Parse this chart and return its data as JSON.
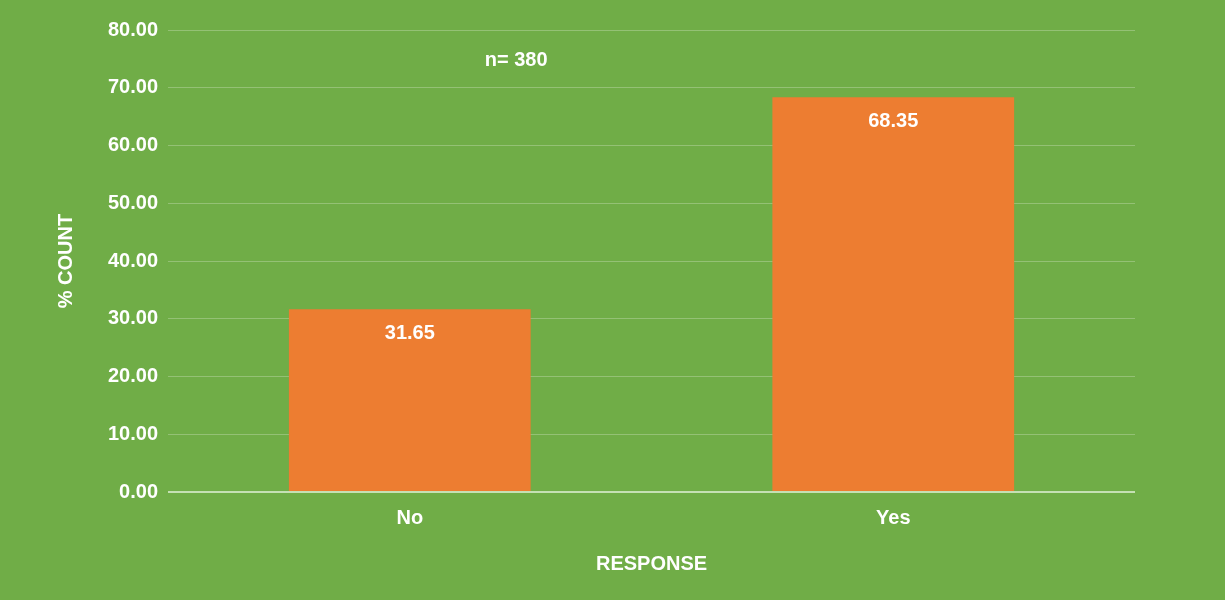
{
  "chart_data": {
    "type": "bar",
    "xlabel": "RESPONSE",
    "ylabel": "% COUNT",
    "categories": [
      "No",
      "Yes"
    ],
    "values": [
      31.65,
      68.35
    ],
    "color": "#ed7d31",
    "ylim": [
      0,
      80
    ],
    "yticks": [
      {
        "value": 0,
        "label": "0.00"
      },
      {
        "value": 10,
        "label": "10.00"
      },
      {
        "value": 20,
        "label": "20.00"
      },
      {
        "value": 30,
        "label": "30.00"
      },
      {
        "value": 40,
        "label": "40.00"
      },
      {
        "value": 50,
        "label": "50.00"
      },
      {
        "value": 60,
        "label": "60.00"
      },
      {
        "value": 70,
        "label": "70.00"
      },
      {
        "value": 80,
        "label": "80.00"
      }
    ],
    "grid": "y",
    "data_labels": true,
    "annotations": [
      "n= 380"
    ]
  }
}
